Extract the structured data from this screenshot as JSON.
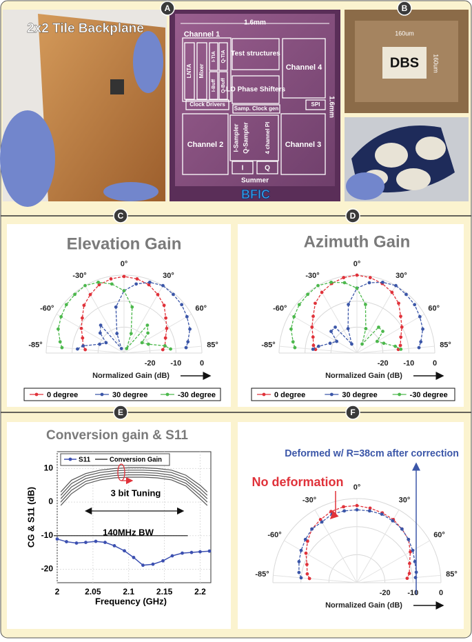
{
  "panels": [
    "A",
    "B",
    "C",
    "D",
    "E",
    "F"
  ],
  "photo_a": {
    "title": "2x2 Tile Backplane",
    "chip_width": "1.6mm",
    "chip_height": "1.6mm",
    "blocks": [
      "Channel 1",
      "Test structures",
      "Channel 4",
      "LNTA",
      "Mixer",
      "I-TIA",
      "Q-TIA",
      "I-Buff",
      "Q-Buff",
      "LO Phase Shifters",
      "Clock Drivers",
      "Samp. Clock gen",
      "SPI",
      "Channel 2",
      "I-Sampler",
      "Q-Sampler",
      "4 channel PI",
      "Channel 3",
      "I",
      "Q",
      "Summer"
    ],
    "chip_name": "BFIC"
  },
  "photo_b": {
    "label": "DBS",
    "width": "160um",
    "height": "160um"
  },
  "chart_data": [
    {
      "type": "polar",
      "title": "Elevation Gain",
      "axis_label": "Normalized Gain (dB)",
      "angles": [
        -85,
        -80,
        -70,
        -60,
        -50,
        -40,
        -30,
        -20,
        -10,
        0,
        10,
        20,
        30,
        40,
        50,
        60,
        70,
        80,
        85
      ],
      "angle_ticks": [
        {
          "value": -85,
          "label": "-85°"
        },
        {
          "value": -60,
          "label": "-60°"
        },
        {
          "value": -30,
          "label": "-30°"
        },
        {
          "value": 0,
          "label": "0°"
        },
        {
          "value": 30,
          "label": "30°"
        },
        {
          "value": 60,
          "label": "60°"
        },
        {
          "value": 85,
          "label": "85°"
        }
      ],
      "rlim": [
        -30,
        0
      ],
      "rticks": [
        -20,
        -10,
        0
      ],
      "series": [
        {
          "name": "0 degree",
          "color": "#e0323a",
          "values": [
            -15,
            -14,
            -13,
            -11,
            -9,
            -6,
            -4,
            -2,
            -1,
            -0.5,
            -1,
            -2,
            -4,
            -6,
            -9,
            -11,
            -13,
            -14,
            -15
          ]
        },
        {
          "name": "30 degree",
          "color": "#3b56a8",
          "values": [
            -12,
            -14,
            -20,
            -22,
            -18,
            -16,
            -28,
            -22,
            -12,
            -6,
            -3,
            -1,
            0,
            -0.5,
            -1,
            -2,
            -3,
            -5,
            -6
          ]
        },
        {
          "name": "-30 degree",
          "color": "#4cb84c",
          "values": [
            -6,
            -5,
            -3,
            -2,
            -1,
            -0.5,
            0,
            -1,
            -3,
            -6,
            -12,
            -22,
            -28,
            -16,
            -18,
            -22,
            -20,
            -14,
            -12
          ]
        }
      ]
    },
    {
      "type": "polar",
      "title": "Azimuth Gain",
      "axis_label": "Normalized Gain (dB)",
      "angles": [
        -85,
        -80,
        -70,
        -60,
        -50,
        -40,
        -30,
        -20,
        -10,
        0,
        10,
        20,
        30,
        40,
        50,
        60,
        70,
        80,
        85
      ],
      "angle_ticks": [
        {
          "value": -85,
          "label": "-85°"
        },
        {
          "value": -60,
          "label": "-60°"
        },
        {
          "value": -30,
          "label": "-30°"
        },
        {
          "value": 0,
          "label": "0°"
        },
        {
          "value": 30,
          "label": "30°"
        },
        {
          "value": 60,
          "label": "60°"
        },
        {
          "value": 85,
          "label": "85°"
        }
      ],
      "rlim": [
        -30,
        0
      ],
      "rticks": [
        -20,
        -10,
        0
      ],
      "series": [
        {
          "name": "0 degree",
          "color": "#e0323a",
          "values": [
            -14,
            -13,
            -12,
            -10,
            -8,
            -5,
            -3,
            -1.5,
            -0.5,
            0,
            -0.5,
            -1.5,
            -3,
            -5,
            -8,
            -10,
            -12,
            -13,
            -14
          ]
        },
        {
          "name": "30 degree",
          "color": "#3b56a8",
          "values": [
            -13,
            -15,
            -19,
            -21,
            -17,
            -17,
            -26,
            -20,
            -11,
            -5,
            -2.5,
            -1,
            0,
            -0.5,
            -1,
            -2,
            -3,
            -5,
            -6
          ]
        },
        {
          "name": "-30 degree",
          "color": "#4cb84c",
          "values": [
            -6,
            -5,
            -3,
            -2,
            -1,
            -0.5,
            0,
            -1,
            -2.5,
            -5,
            -11,
            -20,
            -26,
            -17,
            -17,
            -21,
            -19,
            -15,
            -13
          ]
        }
      ]
    },
    {
      "type": "line",
      "title": "Conversion gain & S11",
      "x_label": "Frequency (GHz)",
      "y_label": "CG & S11 (dB)",
      "annotations": [
        "3 bit Tuning",
        "140MHz BW"
      ],
      "xlim": [
        2,
        2.215
      ],
      "xticks": [
        2,
        2.05,
        2.1,
        2.15,
        2.2
      ],
      "ylim": [
        -24,
        15
      ],
      "yticks": [
        -20,
        -10,
        0,
        10
      ],
      "reference_line": -10,
      "series": [
        {
          "name": "S11",
          "color": "#3b4fb0",
          "x": [
            2.0,
            2.013,
            2.027,
            2.04,
            2.054,
            2.067,
            2.08,
            2.094,
            2.107,
            2.12,
            2.134,
            2.148,
            2.161,
            2.175,
            2.188,
            2.2,
            2.213
          ],
          "values": [
            -11,
            -11.8,
            -12.2,
            -12,
            -11.7,
            -12,
            -13,
            -14.5,
            -16.5,
            -18.8,
            -18.5,
            -17.5,
            -16,
            -15.2,
            -15,
            -14.8,
            -14.6
          ]
        },
        {
          "name": "Conversion Gain",
          "color": "#555555",
          "x": [
            2.005,
            2.02,
            2.04,
            2.06,
            2.08,
            2.1,
            2.12,
            2.14,
            2.16,
            2.18,
            2.2,
            2.21
          ],
          "curves": [
            [
              3,
              6.5,
              8.5,
              9.5,
              10,
              10.2,
              10.2,
              10,
              9.5,
              8,
              5,
              3
            ],
            [
              2,
              5.5,
              7.8,
              8.8,
              9.3,
              9.5,
              9.5,
              9.3,
              8.8,
              7.2,
              4,
              2
            ],
            [
              1,
              4.5,
              7,
              8,
              8.6,
              8.8,
              8.8,
              8.6,
              8,
              6.4,
              3,
              1
            ],
            [
              0,
              3.5,
              6.2,
              7.3,
              7.9,
              8.1,
              8.1,
              7.9,
              7.3,
              5.6,
              2,
              0
            ],
            [
              -1,
              2.5,
              5.4,
              6.6,
              7.2,
              7.4,
              7.4,
              7.2,
              6.6,
              4.8,
              1,
              -1
            ]
          ]
        }
      ]
    },
    {
      "type": "polar",
      "axis_label": "Normalized Gain (dB)",
      "angles": [
        -85,
        -80,
        -70,
        -60,
        -50,
        -40,
        -30,
        -20,
        -10,
        0,
        10,
        20,
        30,
        40,
        50,
        60,
        70,
        80,
        85
      ],
      "angle_ticks": [
        {
          "value": -85,
          "label": "-85°"
        },
        {
          "value": -60,
          "label": "-60°"
        },
        {
          "value": -30,
          "label": "-30°"
        },
        {
          "value": 0,
          "label": "0°"
        },
        {
          "value": 30,
          "label": "30°"
        },
        {
          "value": 60,
          "label": "60°"
        },
        {
          "value": 85,
          "label": "85°"
        }
      ],
      "rlim": [
        -30,
        0
      ],
      "rticks": [
        -20,
        -10,
        0
      ],
      "series": [
        {
          "name": "No deformation",
          "color": "#e0323a",
          "values": [
            -13,
            -12,
            -11,
            -9,
            -7,
            -5,
            -4,
            -3,
            -2.5,
            -2.5,
            -3,
            -3.5,
            -4,
            -5,
            -6,
            -8,
            -10,
            -11,
            -12
          ]
        },
        {
          "name": "Deformed w/ R=38cm after correction",
          "color": "#3b56a8",
          "values": [
            -10,
            -9,
            -8,
            -7,
            -6,
            -5,
            -5,
            -4,
            -4,
            -4,
            -4,
            -4,
            -4.5,
            -5,
            -6,
            -7,
            -8,
            -8.5,
            -9
          ]
        }
      ]
    }
  ]
}
